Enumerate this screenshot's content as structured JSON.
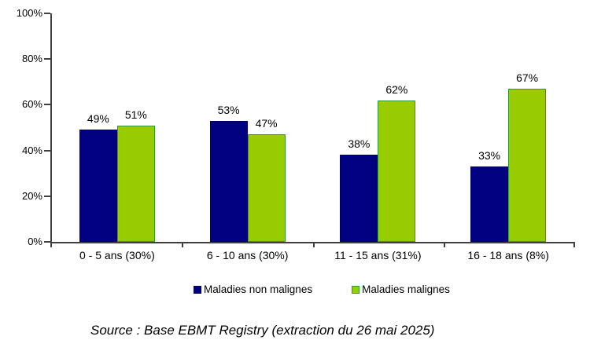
{
  "chart_data": {
    "type": "bar",
    "title": "",
    "xlabel": "",
    "ylabel": "",
    "categories": [
      "0 - 5 ans (30%)",
      "6 - 10 ans (30%)",
      "11 - 15 ans (31%)",
      "16 - 18 ans (8%)"
    ],
    "series": [
      {
        "name": "Maladies non malignes",
        "values": [
          49,
          53,
          38,
          33
        ],
        "fill": "#000080",
        "border": "#000066"
      },
      {
        "name": "Maladies malignes",
        "values": [
          51,
          47,
          62,
          67
        ],
        "fill": "#99CC00",
        "border": "#339933"
      }
    ],
    "value_suffix": "%",
    "y_axis": {
      "min": 0,
      "max": 100,
      "tick_step": 20,
      "tick_labels": [
        "0%",
        "20%",
        "40%",
        "60%",
        "80%",
        "100%"
      ]
    },
    "grid": false,
    "legend_position": "bottom",
    "axis_color": "#404040",
    "text_color": "#000000"
  },
  "source_note": "Source : Base EBMT Registry (extraction du 26 mai 2025)"
}
